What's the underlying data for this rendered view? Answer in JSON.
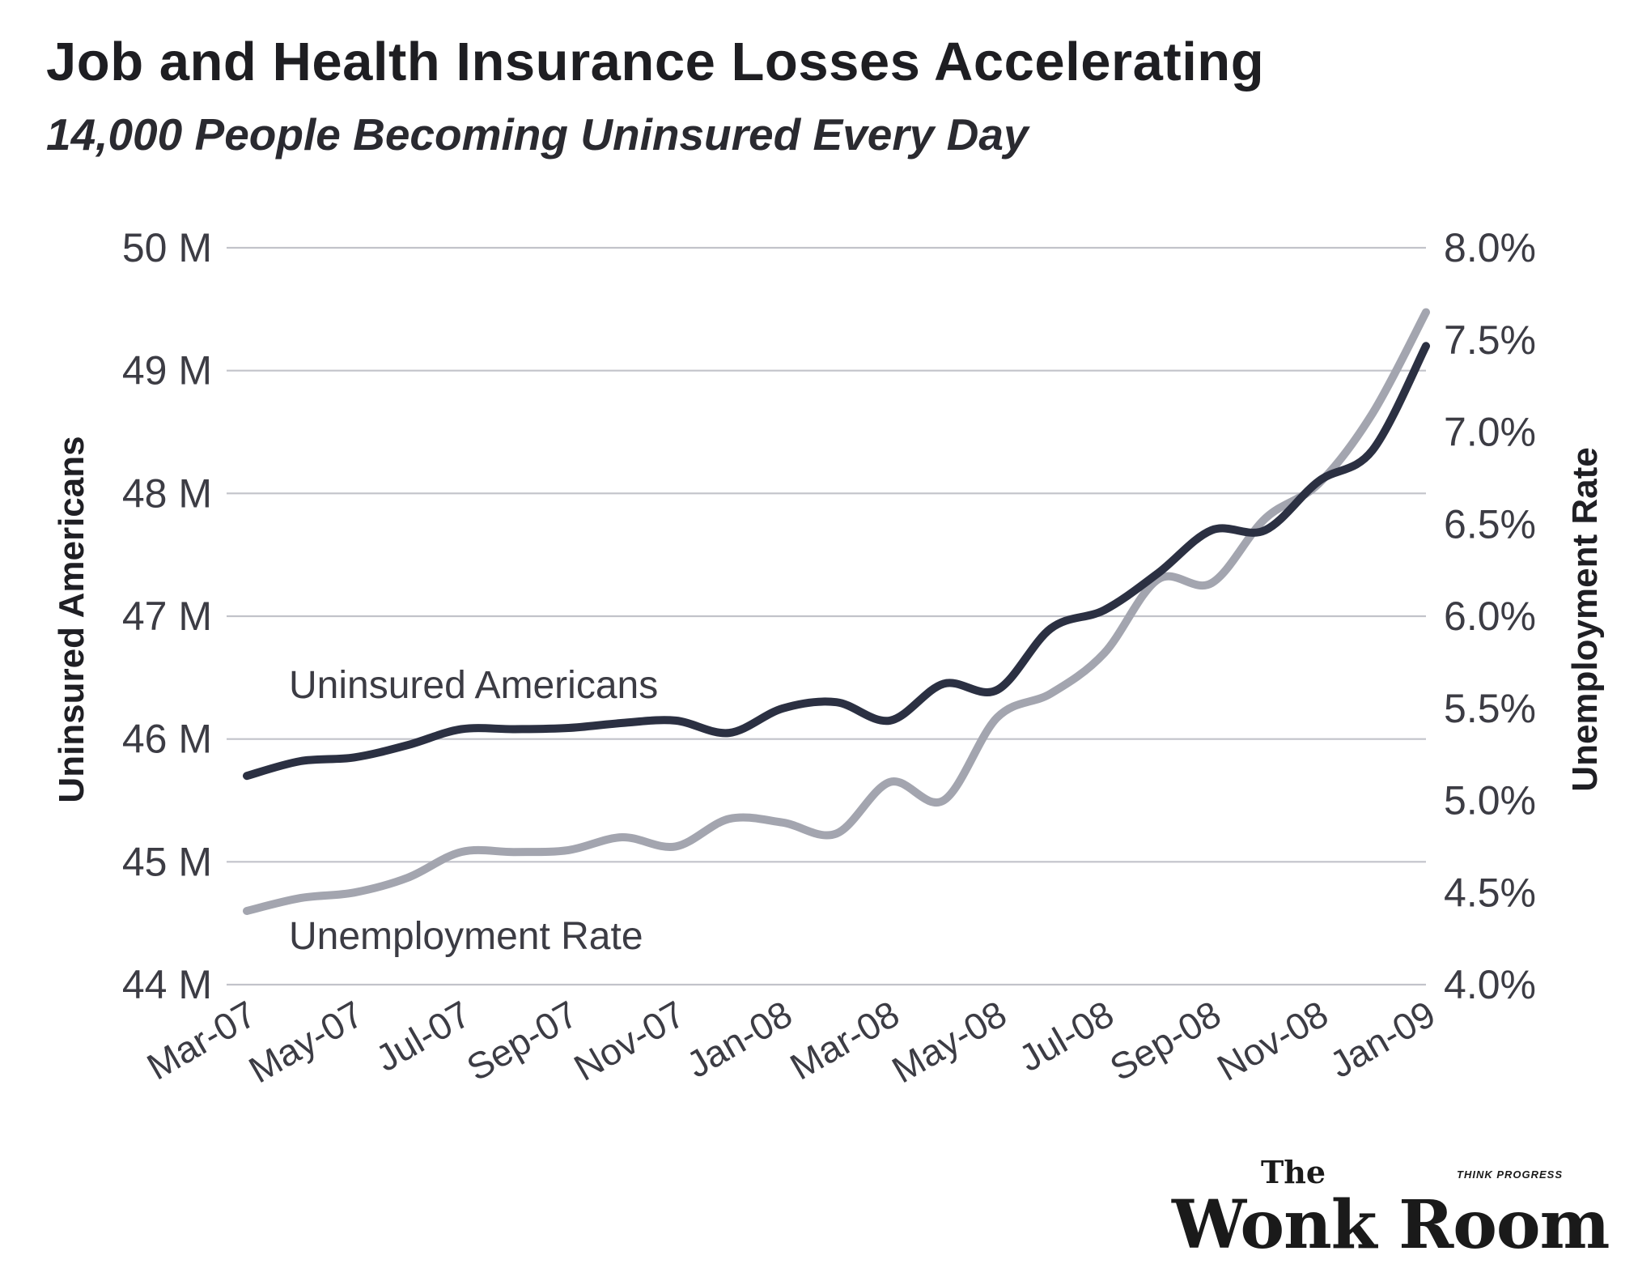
{
  "chart_data": {
    "type": "line",
    "title": "Job and Health Insurance Losses Accelerating",
    "subtitle": "14,000 People Becoming Uninsured Every Day",
    "ylabel_left": "Uninsured Americans",
    "ylabel_right": "Unemployment Rate",
    "ylim_left": [
      44,
      50
    ],
    "ylim_right": [
      4.0,
      8.0
    ],
    "yticks_left": [
      "44 M",
      "45 M",
      "46 M",
      "47 M",
      "48 M",
      "49 M",
      "50 M"
    ],
    "yticks_right": [
      "4.0%",
      "4.5%",
      "5.0%",
      "5.5%",
      "6.0%",
      "6.5%",
      "7.0%",
      "7.5%",
      "8.0%"
    ],
    "xticks": [
      "Mar-07",
      "May-07",
      "Jul-07",
      "Sep-07",
      "Nov-07",
      "Jan-08",
      "Mar-08",
      "May-08",
      "Jul-08",
      "Sep-08",
      "Nov-08",
      "Jan-09"
    ],
    "x": [
      "Mar-07",
      "Apr-07",
      "May-07",
      "Jun-07",
      "Jul-07",
      "Aug-07",
      "Sep-07",
      "Oct-07",
      "Nov-07",
      "Dec-07",
      "Jan-08",
      "Feb-08",
      "Mar-08",
      "Apr-08",
      "May-08",
      "Jun-08",
      "Jul-08",
      "Aug-08",
      "Sep-08",
      "Oct-08",
      "Nov-08",
      "Dec-08",
      "Jan-09"
    ],
    "grid": true,
    "series": [
      {
        "name": "Uninsured Americans",
        "axis": "left",
        "color": "#2b3042",
        "values": [
          45.7,
          45.82,
          45.85,
          45.95,
          46.08,
          46.08,
          46.09,
          46.13,
          46.15,
          46.05,
          46.25,
          46.3,
          46.15,
          46.45,
          46.4,
          46.9,
          47.05,
          47.35,
          47.7,
          47.7,
          48.1,
          48.35,
          49.2
        ]
      },
      {
        "name": "Unemployment Rate",
        "axis": "right",
        "color": "#a3a5af",
        "values": [
          4.4,
          4.47,
          4.5,
          4.58,
          4.72,
          4.72,
          4.73,
          4.8,
          4.75,
          4.9,
          4.88,
          4.82,
          5.1,
          5.0,
          5.45,
          5.58,
          5.8,
          6.2,
          6.18,
          6.53,
          6.72,
          7.1,
          7.65
        ]
      }
    ]
  },
  "logo": {
    "the": "The",
    "name": "Wonk Room",
    "tag": "THINK PROGRESS"
  }
}
